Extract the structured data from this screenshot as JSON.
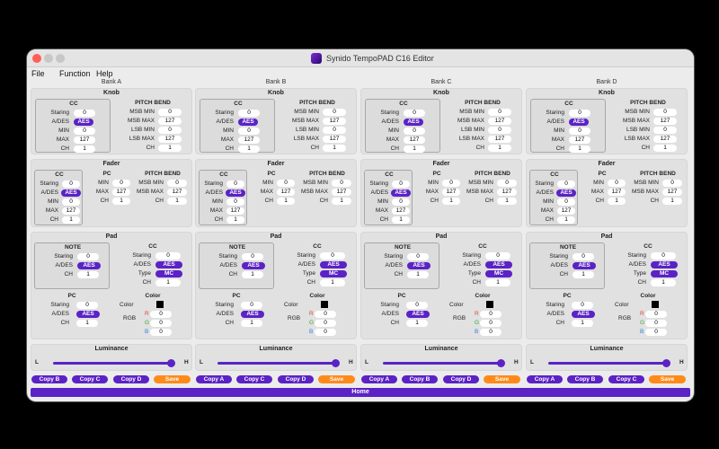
{
  "window": {
    "title": "Synido TempoPAD C16 Editor",
    "traffic_colors": [
      "#ff5f57",
      "#c7c7c7",
      "#c7c7c7"
    ]
  },
  "menu": [
    "File",
    "Function",
    "Help"
  ],
  "accent": "#5b22c6",
  "save_color": "#ff8a1a",
  "home_label": "Home",
  "banks": [
    {
      "name": "Bank A",
      "copy": [
        "Copy B",
        "Copy C",
        "Copy D"
      ]
    },
    {
      "name": "Bank B",
      "copy": [
        "Copy A",
        "Copy C",
        "Copy D"
      ]
    },
    {
      "name": "Bank C",
      "copy": [
        "Copy A",
        "Copy B",
        "Copy D"
      ]
    },
    {
      "name": "Bank D",
      "copy": [
        "Copy A",
        "Copy B",
        "Copy C"
      ]
    }
  ],
  "labels": {
    "knob": "Knob",
    "fader": "Fader",
    "pad": "Pad",
    "luminance": "Luminance",
    "cc": "CC",
    "pc": "PC",
    "note": "NOTE",
    "pitch_bend": "PITCH BEND",
    "color": "Color",
    "staring": "Staring",
    "ades": "A/DES",
    "min": "MIN",
    "max": "MAX",
    "ch": "CH",
    "type": "Type",
    "msb_min": "MSB MIN",
    "msb_max": "MSB MAX",
    "lsb_min": "LSB MIN",
    "lsb_max": "LSB MAX",
    "rgb": "RGB",
    "r": "R",
    "g": "G",
    "b": "B",
    "l": "L",
    "h": "H",
    "save": "Save"
  },
  "values": {
    "staring": "0",
    "ades": "AES",
    "min": "0",
    "max": "127",
    "ch": "1",
    "type": "MC",
    "msb_min": "0",
    "msb_max": "127",
    "lsb_min": "0",
    "lsb_max": "127",
    "r": "0",
    "g": "0",
    "b": "0",
    "pc_staring": "0"
  },
  "luminance_level": 1.0
}
